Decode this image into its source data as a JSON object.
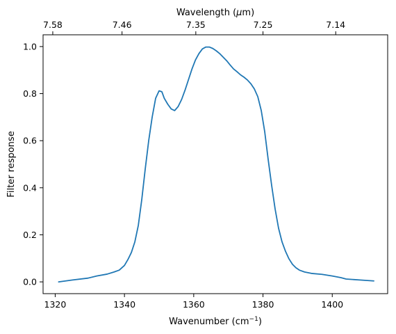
{
  "chart_data": {
    "type": "line",
    "xlabel": "Wavenumber (cm",
    "xlabel_sup": "−1",
    "xlabel_close": ")",
    "ylabel": "Filter response",
    "top_xlabel_prefix": "Wavelength (",
    "top_xlabel_mu": "μ",
    "top_xlabel_suffix": "m)",
    "xlim": [
      1316.5,
      1416
    ],
    "ylim": [
      -0.05,
      1.05
    ],
    "xticks": [
      1320,
      1340,
      1360,
      1380,
      1400
    ],
    "xtick_labels": [
      "1320",
      "1340",
      "1360",
      "1380",
      "1400"
    ],
    "yticks": [
      0.0,
      0.2,
      0.4,
      0.6,
      0.8,
      1.0
    ],
    "ytick_labels": [
      "0.0",
      "0.2",
      "0.4",
      "0.6",
      "0.8",
      "1.0"
    ],
    "top_xticks": [
      1319.3,
      1339.3,
      1360.6,
      1380.0,
      1401.0
    ],
    "top_xtick_labels": [
      "7.58",
      "7.46",
      "7.35",
      "7.25",
      "7.14"
    ],
    "line_color": "#1f77b4",
    "grid": false,
    "series": [
      {
        "x": [
          1321,
          1325,
          1329.5,
          1332,
          1335,
          1337,
          1338.5,
          1340,
          1341,
          1342,
          1343,
          1344,
          1345,
          1346,
          1347,
          1348,
          1349,
          1350,
          1350.8,
          1351.5,
          1352.5,
          1353.5,
          1354.5,
          1355.5,
          1356.5,
          1357.5,
          1358.5,
          1359.5,
          1360.5,
          1361.5,
          1362.5,
          1363.5,
          1364.5,
          1365.5,
          1366.5,
          1367.5,
          1368.5,
          1369.5,
          1370.5,
          1371.5,
          1372.5,
          1373.5,
          1374.5,
          1375.5,
          1376.5,
          1377.5,
          1378.5,
          1379.5,
          1380.5,
          1381.5,
          1382.5,
          1383.5,
          1384.5,
          1385.5,
          1386.5,
          1387.5,
          1388.5,
          1389.5,
          1390.5,
          1392,
          1394,
          1397,
          1400,
          1402.5,
          1404,
          1408,
          1412
        ],
        "y": [
          0.0,
          0.008,
          0.016,
          0.025,
          0.033,
          0.042,
          0.05,
          0.07,
          0.095,
          0.125,
          0.17,
          0.24,
          0.35,
          0.48,
          0.6,
          0.7,
          0.78,
          0.812,
          0.808,
          0.78,
          0.755,
          0.735,
          0.728,
          0.745,
          0.775,
          0.815,
          0.86,
          0.905,
          0.943,
          0.97,
          0.99,
          0.998,
          0.998,
          0.992,
          0.982,
          0.97,
          0.955,
          0.94,
          0.922,
          0.905,
          0.893,
          0.88,
          0.87,
          0.858,
          0.842,
          0.82,
          0.787,
          0.728,
          0.638,
          0.52,
          0.41,
          0.31,
          0.228,
          0.17,
          0.13,
          0.098,
          0.075,
          0.06,
          0.05,
          0.042,
          0.036,
          0.032,
          0.025,
          0.018,
          0.012,
          0.008,
          0.004
        ]
      }
    ]
  }
}
